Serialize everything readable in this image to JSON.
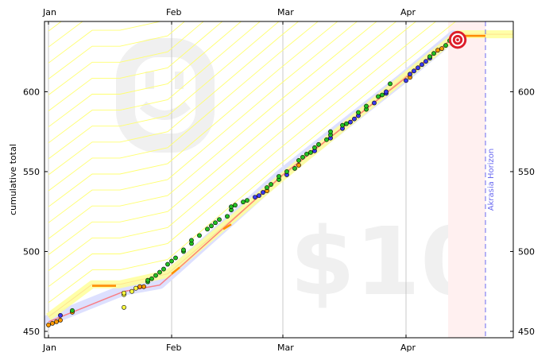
{
  "chart_data": {
    "type": "scatter",
    "title": "",
    "xlabel": "",
    "ylabel": "cumulative total",
    "x_ticks": [
      "Jan",
      "Feb",
      "Mar",
      "Apr"
    ],
    "y_ticks": [
      450,
      500,
      550,
      600
    ],
    "xlim": [
      "2012-12-31",
      "2013-04-28"
    ],
    "ylim": [
      446,
      644
    ],
    "grid": "vertical",
    "watermark": {
      "pledge": "$10",
      "icon": "smiley-face-icon"
    },
    "akrasia_horizon": {
      "label": "Akrasia Horizon",
      "date": "2013-04-21"
    },
    "goal": {
      "date": "2013-04-14",
      "value": 635
    },
    "colors": {
      "green_point": "#22c022",
      "blue_point": "#3a3af0",
      "orange_point": "#ff9900",
      "yellow_point": "#ffff40",
      "road_band": "#ffff99",
      "road_line": "#ffd27f",
      "trend_line": "#ff6666",
      "moving_avg": "#dde0ff",
      "horizon_line": "#6a6af0",
      "bullseye": "#dd1e2a"
    },
    "road": [
      [
        "2013-01-01",
        458
      ],
      [
        "2013-01-12",
        478.5
      ],
      [
        "2013-01-19",
        478.5
      ],
      [
        "2013-01-31",
        485
      ],
      [
        "2013-02-28",
        544
      ],
      [
        "2013-03-31",
        607
      ],
      [
        "2013-04-14",
        635
      ],
      [
        "2013-04-28",
        635
      ]
    ],
    "trend_line": [
      [
        "2013-01-01",
        456
      ],
      [
        "2013-01-09",
        464
      ],
      [
        "2013-01-20",
        475
      ],
      [
        "2013-01-29",
        479
      ],
      [
        "2013-02-03",
        490
      ],
      [
        "2013-03-01",
        548
      ],
      [
        "2013-03-31",
        607
      ],
      [
        "2013-04-13",
        634
      ]
    ],
    "orange_segments": [
      [
        [
          "2013-01-12",
          478.5
        ],
        [
          "2013-01-18",
          478.5
        ]
      ],
      [
        [
          "2013-02-01",
          486
        ],
        [
          "2013-02-03",
          490
        ]
      ],
      [
        [
          "2013-02-14",
          514
        ],
        [
          "2013-02-16",
          517
        ]
      ],
      [
        [
          "2013-04-14",
          635
        ],
        [
          "2013-04-21",
          635
        ]
      ]
    ],
    "points": [
      {
        "date": "2013-01-01",
        "value": 454,
        "color": "orange"
      },
      {
        "date": "2013-01-02",
        "value": 455,
        "color": "orange"
      },
      {
        "date": "2013-01-03",
        "value": 456,
        "color": "orange"
      },
      {
        "date": "2013-01-04",
        "value": 457,
        "color": "orange"
      },
      {
        "date": "2013-01-04",
        "value": 460,
        "color": "blue"
      },
      {
        "date": "2013-01-07",
        "value": 462,
        "color": "orange"
      },
      {
        "date": "2013-01-07",
        "value": 463,
        "color": "green"
      },
      {
        "date": "2013-01-20",
        "value": 465,
        "color": "yellow"
      },
      {
        "date": "2013-01-20",
        "value": 473,
        "color": "yellow"
      },
      {
        "date": "2013-01-20",
        "value": 474,
        "color": "yellow"
      },
      {
        "date": "2013-01-22",
        "value": 475,
        "color": "yellow"
      },
      {
        "date": "2013-01-23",
        "value": 477,
        "color": "yellow"
      },
      {
        "date": "2013-01-24",
        "value": 478,
        "color": "orange"
      },
      {
        "date": "2013-01-25",
        "value": 478,
        "color": "orange"
      },
      {
        "date": "2013-01-26",
        "value": 481,
        "color": "green"
      },
      {
        "date": "2013-01-26",
        "value": 482,
        "color": "green"
      },
      {
        "date": "2013-01-27",
        "value": 483,
        "color": "green"
      },
      {
        "date": "2013-01-28",
        "value": 485,
        "color": "green"
      },
      {
        "date": "2013-01-29",
        "value": 487,
        "color": "green"
      },
      {
        "date": "2013-01-30",
        "value": 489,
        "color": "green"
      },
      {
        "date": "2013-01-31",
        "value": 492,
        "color": "green"
      },
      {
        "date": "2013-02-01",
        "value": 494,
        "color": "green"
      },
      {
        "date": "2013-02-02",
        "value": 496,
        "color": "green"
      },
      {
        "date": "2013-02-04",
        "value": 500,
        "color": "green"
      },
      {
        "date": "2013-02-04",
        "value": 501,
        "color": "green"
      },
      {
        "date": "2013-02-06",
        "value": 505,
        "color": "green"
      },
      {
        "date": "2013-02-06",
        "value": 507,
        "color": "green"
      },
      {
        "date": "2013-02-08",
        "value": 510,
        "color": "green"
      },
      {
        "date": "2013-02-10",
        "value": 514,
        "color": "green"
      },
      {
        "date": "2013-02-11",
        "value": 516,
        "color": "green"
      },
      {
        "date": "2013-02-12",
        "value": 518,
        "color": "green"
      },
      {
        "date": "2013-02-13",
        "value": 520,
        "color": "green"
      },
      {
        "date": "2013-02-15",
        "value": 522,
        "color": "green"
      },
      {
        "date": "2013-02-16",
        "value": 526,
        "color": "green"
      },
      {
        "date": "2013-02-16",
        "value": 528,
        "color": "green"
      },
      {
        "date": "2013-02-17",
        "value": 529,
        "color": "green"
      },
      {
        "date": "2013-02-19",
        "value": 531,
        "color": "green"
      },
      {
        "date": "2013-02-20",
        "value": 532,
        "color": "green"
      },
      {
        "date": "2013-02-22",
        "value": 534,
        "color": "blue"
      },
      {
        "date": "2013-02-23",
        "value": 535,
        "color": "blue"
      },
      {
        "date": "2013-02-24",
        "value": 537,
        "color": "blue"
      },
      {
        "date": "2013-02-25",
        "value": 538,
        "color": "orange"
      },
      {
        "date": "2013-02-25",
        "value": 540,
        "color": "green"
      },
      {
        "date": "2013-02-26",
        "value": 542,
        "color": "green"
      },
      {
        "date": "2013-02-28",
        "value": 545,
        "color": "green"
      },
      {
        "date": "2013-02-28",
        "value": 547,
        "color": "green"
      },
      {
        "date": "2013-03-02",
        "value": 548,
        "color": "blue"
      },
      {
        "date": "2013-03-02",
        "value": 550,
        "color": "green"
      },
      {
        "date": "2013-03-04",
        "value": 552,
        "color": "green"
      },
      {
        "date": "2013-03-05",
        "value": 554,
        "color": "orange"
      },
      {
        "date": "2013-03-05",
        "value": 557,
        "color": "green"
      },
      {
        "date": "2013-03-06",
        "value": 559,
        "color": "green"
      },
      {
        "date": "2013-03-07",
        "value": 561,
        "color": "green"
      },
      {
        "date": "2013-03-08",
        "value": 562,
        "color": "green"
      },
      {
        "date": "2013-03-09",
        "value": 563,
        "color": "blue"
      },
      {
        "date": "2013-03-09",
        "value": 565,
        "color": "green"
      },
      {
        "date": "2013-03-10",
        "value": 567,
        "color": "green"
      },
      {
        "date": "2013-03-12",
        "value": 570,
        "color": "green"
      },
      {
        "date": "2013-03-13",
        "value": 571,
        "color": "blue"
      },
      {
        "date": "2013-03-13",
        "value": 573,
        "color": "green"
      },
      {
        "date": "2013-03-13",
        "value": 575,
        "color": "green"
      },
      {
        "date": "2013-03-16",
        "value": 577,
        "color": "blue"
      },
      {
        "date": "2013-03-16",
        "value": 579,
        "color": "green"
      },
      {
        "date": "2013-03-17",
        "value": 580,
        "color": "green"
      },
      {
        "date": "2013-03-18",
        "value": 581,
        "color": "blue"
      },
      {
        "date": "2013-03-19",
        "value": 583,
        "color": "blue"
      },
      {
        "date": "2013-03-20",
        "value": 585,
        "color": "blue"
      },
      {
        "date": "2013-03-20",
        "value": 587,
        "color": "green"
      },
      {
        "date": "2013-03-22",
        "value": 589,
        "color": "green"
      },
      {
        "date": "2013-03-22",
        "value": 591,
        "color": "green"
      },
      {
        "date": "2013-03-24",
        "value": 593,
        "color": "blue"
      },
      {
        "date": "2013-03-25",
        "value": 597,
        "color": "green"
      },
      {
        "date": "2013-03-26",
        "value": 598,
        "color": "green"
      },
      {
        "date": "2013-03-27",
        "value": 599,
        "color": "blue"
      },
      {
        "date": "2013-03-27",
        "value": 600,
        "color": "blue"
      },
      {
        "date": "2013-03-28",
        "value": 605,
        "color": "green"
      },
      {
        "date": "2013-04-01",
        "value": 607,
        "color": "blue"
      },
      {
        "date": "2013-04-02",
        "value": 609,
        "color": "orange"
      },
      {
        "date": "2013-04-02",
        "value": 611,
        "color": "blue"
      },
      {
        "date": "2013-04-03",
        "value": 613,
        "color": "blue"
      },
      {
        "date": "2013-04-04",
        "value": 615,
        "color": "blue"
      },
      {
        "date": "2013-04-05",
        "value": 617,
        "color": "blue"
      },
      {
        "date": "2013-04-06",
        "value": 619,
        "color": "blue"
      },
      {
        "date": "2013-04-07",
        "value": 621,
        "color": "blue"
      },
      {
        "date": "2013-04-07",
        "value": 622,
        "color": "green"
      },
      {
        "date": "2013-04-08",
        "value": 624,
        "color": "green"
      },
      {
        "date": "2013-04-09",
        "value": 626,
        "color": "orange"
      },
      {
        "date": "2013-04-10",
        "value": 627,
        "color": "orange"
      },
      {
        "date": "2013-04-11",
        "value": 629,
        "color": "green"
      },
      {
        "date": "2013-04-12",
        "value": 632,
        "color": "green"
      },
      {
        "date": "2013-04-13",
        "value": 634,
        "color": "blue"
      },
      {
        "date": "2013-04-14",
        "value": 636,
        "color": "green"
      }
    ]
  }
}
